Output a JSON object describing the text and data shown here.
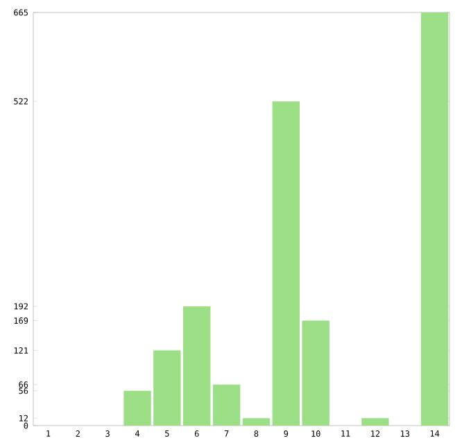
{
  "chart_data": {
    "type": "bar",
    "categories": [
      "1",
      "2",
      "3",
      "4",
      "5",
      "6",
      "7",
      "8",
      "9",
      "10",
      "11",
      "12",
      "13",
      "14"
    ],
    "values": [
      0,
      0,
      0,
      56,
      121,
      192,
      66,
      12,
      522,
      169,
      0,
      12,
      0,
      665
    ],
    "color": "#9ddf87",
    "ylim": [
      0,
      665
    ],
    "yticks": [
      0,
      12,
      56,
      66,
      121,
      169,
      192,
      522,
      665
    ],
    "grid": false
  }
}
